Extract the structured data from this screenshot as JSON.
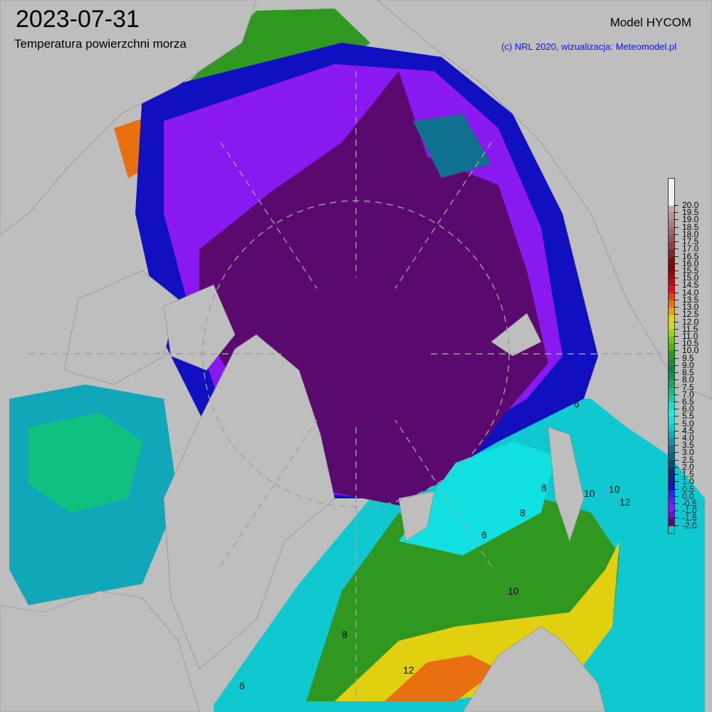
{
  "header": {
    "date": "2023-07-31",
    "subtitle": "Temperatura powierzchni morza",
    "model": "Model HYCOM",
    "credit": "(c) NRL 2020, wizualizacja: Meteomodel.pl"
  },
  "colors": {
    "land": "#bebebe",
    "credit_text": "#1010ff",
    "graticule": "#a0a0a0"
  },
  "colorbar": {
    "unit_range": [
      -2.0,
      20.0
    ],
    "labels": [
      "20.0",
      "19.5",
      "19.0",
      "18.5",
      "18.0",
      "17.5",
      "17.0",
      "16.5",
      "16.0",
      "15.5",
      "15.0",
      "14.5",
      "14.0",
      "13.5",
      "13.0",
      "12.5",
      "12.0",
      "11.5",
      "11.0",
      "10.5",
      "10.0",
      "9.5",
      "9.0",
      "8.5",
      "8.0",
      "7.5",
      "7.0",
      "6.5",
      "6.0",
      "5.5",
      "5.0",
      "4.5",
      "4.0",
      "3.5",
      "3.0",
      "2.5",
      "2.0",
      "1.5",
      "1.0",
      "0.5",
      "0.0",
      "-0.5",
      "-1.0",
      "-1.5",
      "-2.0"
    ],
    "colors": [
      "#d4c6c6",
      "#c4a4a4",
      "#b88e8e",
      "#ae7a7a",
      "#a26464",
      "#985252",
      "#8a4242",
      "#7c2c2c",
      "#6e1414",
      "#7e0808",
      "#9c0808",
      "#c00808",
      "#e01010",
      "#e84010",
      "#e87010",
      "#e8a010",
      "#e0d010",
      "#c8e010",
      "#a0d010",
      "#70c010",
      "#50b010",
      "#309820",
      "#208830",
      "#108040",
      "#109050",
      "#10a860",
      "#10c080",
      "#10d0a0",
      "#10e0c8",
      "#10f0e8",
      "#10e0e0",
      "#10c8d0",
      "#10a8b8",
      "#1090a0",
      "#107090",
      "#106080",
      "#104868",
      "#103070",
      "#102090",
      "#1010c0",
      "#3020e0",
      "#5a20f0",
      "#8a18f0",
      "#7010c0",
      "#5a0a6e"
    ],
    "above_max_color": "#f2f2f2"
  },
  "contour_labels": [
    "6",
    "8",
    "10",
    "10",
    "12",
    "6",
    "8",
    "10",
    "12",
    "6",
    "8"
  ]
}
